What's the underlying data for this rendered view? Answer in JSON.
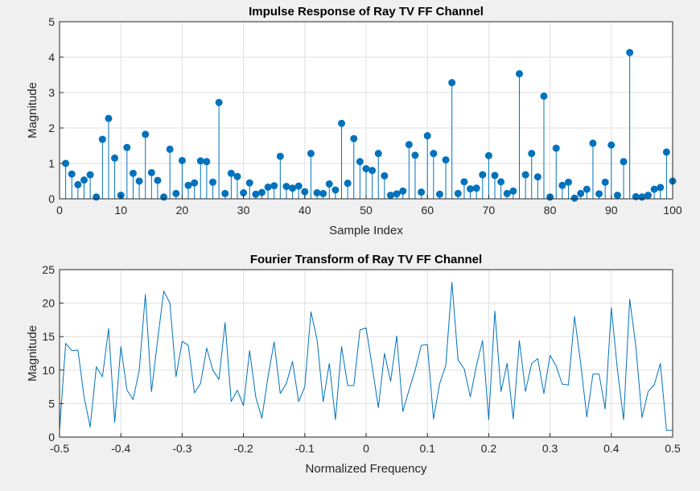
{
  "chart_data": [
    {
      "type": "stem",
      "title": "Impulse Response of Ray TV FF Channel",
      "xlabel": "Sample Index",
      "ylabel": "Magnitude",
      "xlim": [
        0,
        100
      ],
      "ylim": [
        0,
        5
      ],
      "xticks": [
        0,
        10,
        20,
        30,
        40,
        50,
        60,
        70,
        80,
        90,
        100
      ],
      "yticks": [
        0,
        1,
        2,
        3,
        4,
        5
      ],
      "grid": true,
      "color": "#0072BD",
      "x": [
        1,
        2,
        3,
        4,
        5,
        6,
        7,
        8,
        9,
        10,
        11,
        12,
        13,
        14,
        15,
        16,
        17,
        18,
        19,
        20,
        21,
        22,
        23,
        24,
        25,
        26,
        27,
        28,
        29,
        30,
        31,
        32,
        33,
        34,
        35,
        36,
        37,
        38,
        39,
        40,
        41,
        42,
        43,
        44,
        45,
        46,
        47,
        48,
        49,
        50,
        51,
        52,
        53,
        54,
        55,
        56,
        57,
        58,
        59,
        60,
        61,
        62,
        63,
        64,
        65,
        66,
        67,
        68,
        69,
        70,
        71,
        72,
        73,
        74,
        75,
        76,
        77,
        78,
        79,
        80,
        81,
        82,
        83,
        84,
        85,
        86,
        87,
        88,
        89,
        90,
        91,
        92,
        93,
        94,
        95,
        96,
        97,
        98,
        99,
        100
      ],
      "values": [
        1.0,
        0.7,
        0.4,
        0.53,
        0.68,
        0.05,
        1.68,
        2.27,
        1.15,
        0.1,
        1.45,
        0.72,
        0.5,
        1.82,
        0.74,
        0.52,
        0.05,
        1.4,
        0.15,
        1.08,
        0.38,
        0.45,
        1.07,
        1.05,
        0.47,
        2.72,
        0.15,
        0.72,
        0.63,
        0.17,
        0.45,
        0.13,
        0.18,
        0.33,
        0.37,
        1.2,
        0.35,
        0.3,
        0.36,
        0.2,
        1.28,
        0.17,
        0.15,
        0.42,
        0.25,
        2.13,
        0.44,
        1.7,
        1.05,
        0.85,
        0.8,
        1.28,
        0.65,
        0.1,
        0.14,
        0.22,
        1.53,
        1.23,
        0.19,
        1.78,
        1.28,
        0.13,
        1.1,
        3.28,
        0.15,
        0.48,
        0.28,
        0.3,
        0.68,
        1.22,
        0.66,
        0.48,
        0.15,
        0.22,
        3.53,
        0.68,
        1.28,
        0.62,
        2.9,
        0.05,
        1.43,
        0.38,
        0.47,
        0.02,
        0.15,
        0.27,
        1.57,
        0.14,
        0.47,
        1.52,
        0.1,
        1.05,
        4.13,
        0.06,
        0.05,
        0.1,
        0.27,
        0.32,
        1.32,
        0.5
      ]
    },
    {
      "type": "line",
      "title": "Fourier Transform of Ray TV FF Channel",
      "xlabel": "Normalized Frequency",
      "ylabel": "Magnitude",
      "xlim": [
        -0.5,
        0.5
      ],
      "ylim": [
        0,
        25
      ],
      "xticks": [
        -0.5,
        -0.4,
        -0.3,
        -0.2,
        -0.1,
        0,
        0.1,
        0.2,
        0.3,
        0.4,
        0.5
      ],
      "xtick_labels": [
        "-0.5",
        "-0.4",
        "-0.3",
        "-0.2",
        "-0.1",
        "0",
        "0.1",
        "0.2",
        "0.3",
        "0.4",
        "0.5"
      ],
      "yticks": [
        0,
        5,
        10,
        15,
        20,
        25
      ],
      "grid": true,
      "color": "#0072BD",
      "x": [
        -0.5,
        -0.49,
        -0.48,
        -0.47,
        -0.46,
        -0.45,
        -0.44,
        -0.43,
        -0.42,
        -0.41,
        -0.4,
        -0.39,
        -0.38,
        -0.37,
        -0.36,
        -0.35,
        -0.34,
        -0.33,
        -0.32,
        -0.31,
        -0.3,
        -0.29,
        -0.28,
        -0.27,
        -0.26,
        -0.25,
        -0.24,
        -0.23,
        -0.22,
        -0.21,
        -0.2,
        -0.19,
        -0.18,
        -0.17,
        -0.16,
        -0.15,
        -0.14,
        -0.13,
        -0.12,
        -0.11,
        -0.1,
        -0.09,
        -0.08,
        -0.07,
        -0.06,
        -0.05,
        -0.04,
        -0.03,
        -0.02,
        -0.01,
        0.0,
        0.01,
        0.02,
        0.03,
        0.04,
        0.05,
        0.06,
        0.07,
        0.08,
        0.09,
        0.1,
        0.11,
        0.12,
        0.13,
        0.14,
        0.15,
        0.16,
        0.17,
        0.18,
        0.19,
        0.2,
        0.21,
        0.22,
        0.23,
        0.24,
        0.25,
        0.26,
        0.27,
        0.28,
        0.29,
        0.3,
        0.31,
        0.32,
        0.33,
        0.34,
        0.35,
        0.36,
        0.37,
        0.38,
        0.39,
        0.4,
        0.41,
        0.42,
        0.43,
        0.44,
        0.45,
        0.46,
        0.47,
        0.48,
        0.49,
        0.5
      ],
      "values": [
        1.0,
        14.0,
        12.9,
        13.0,
        6.0,
        1.5,
        10.5,
        9.0,
        16.2,
        2.2,
        13.5,
        7.0,
        5.6,
        10.0,
        21.3,
        6.8,
        14.5,
        21.8,
        20.0,
        9.0,
        14.3,
        13.7,
        6.6,
        8.0,
        13.3,
        10.0,
        8.6,
        17.1,
        5.3,
        7.0,
        4.7,
        12.9,
        6.0,
        2.8,
        9.0,
        14.2,
        6.5,
        8.0,
        11.3,
        5.3,
        7.5,
        18.7,
        14.6,
        5.3,
        11.0,
        2.6,
        13.5,
        7.7,
        7.7,
        16.0,
        16.3,
        10.5,
        4.4,
        12.5,
        8.3,
        15.1,
        3.8,
        7.0,
        10.0,
        13.7,
        13.8,
        2.7,
        8.0,
        10.7,
        23.1,
        11.5,
        10.2,
        6.0,
        10.7,
        14.4,
        2.6,
        18.8,
        6.8,
        11.0,
        2.7,
        14.4,
        6.8,
        11.0,
        11.7,
        6.5,
        12.2,
        10.6,
        7.9,
        7.8,
        18.0,
        11.0,
        3.0,
        9.4,
        9.4,
        4.2,
        19.3,
        10.0,
        2.6,
        20.6,
        13.5,
        2.9,
        6.8,
        7.8,
        11.0,
        1.0,
        1.0
      ]
    }
  ]
}
